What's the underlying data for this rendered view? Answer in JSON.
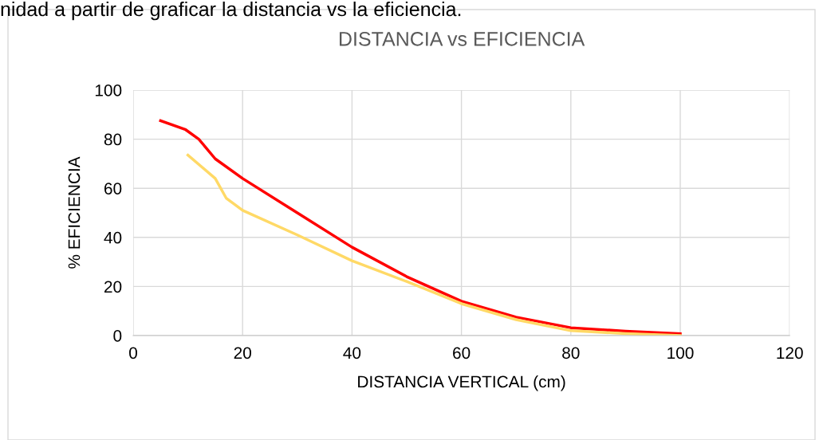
{
  "chart_data": {
    "type": "line",
    "title": "DISTANCIA vs EFICIENCIA",
    "xlabel": "DISTANCIA VERTICAL (cm)",
    "ylabel": "% EFICIENCIA",
    "annotations": [
      "nidad a partir de graficar la distancia vs la eficiencia."
    ],
    "xlim": [
      0,
      120
    ],
    "xticks": [
      0,
      20,
      40,
      60,
      80,
      100,
      120
    ],
    "ylim": [
      0,
      100
    ],
    "yticks": [
      0,
      20,
      40,
      60,
      80,
      100
    ],
    "grid": true,
    "legend": false,
    "marker": "none",
    "line_style": "solid",
    "series": [
      {
        "color": "#ff0000",
        "x": [
          5,
          9.5,
          12,
          15,
          20,
          30,
          40,
          50,
          60,
          70,
          80,
          90,
          100
        ],
        "values": [
          87.5,
          84,
          80,
          72,
          64,
          50,
          36,
          24,
          14,
          7.5,
          3.2,
          1.8,
          0.8
        ]
      },
      {
        "color": "#ffd966",
        "x": [
          10,
          15,
          17,
          20,
          30,
          40,
          50,
          60,
          70,
          80,
          90,
          100
        ],
        "values": [
          73.5,
          64,
          56,
          51,
          41,
          30.5,
          22,
          13,
          6.5,
          2,
          0.8,
          0
        ]
      }
    ]
  }
}
